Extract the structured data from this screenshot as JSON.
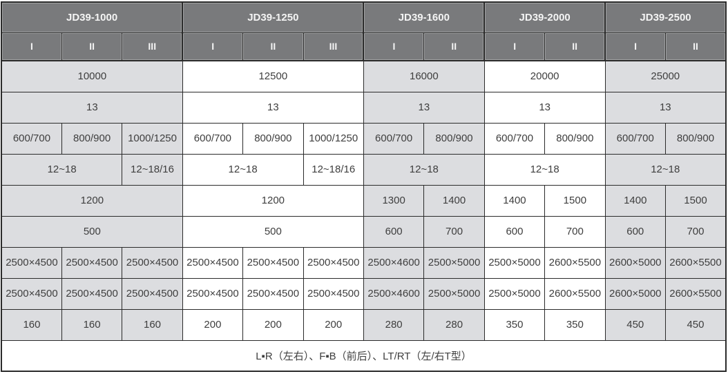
{
  "colors": {
    "header_bg": "#797a7c",
    "header_text": "#f4f4f4",
    "cell_shaded": "#dcdde0",
    "cell_white": "#ffffff",
    "grid_border": "#2a2a2a",
    "body_text": "#3e3e3e"
  },
  "chart_data": {
    "type": "table",
    "column_groups": [
      {
        "label": "JD39-1000",
        "subcolumns": [
          "I",
          "II",
          "III"
        ]
      },
      {
        "label": "JD39-1250",
        "subcolumns": [
          "I",
          "II",
          "III"
        ]
      },
      {
        "label": "JD39-1600",
        "subcolumns": [
          "I",
          "II"
        ]
      },
      {
        "label": "JD39-2000",
        "subcolumns": [
          "I",
          "II"
        ]
      },
      {
        "label": "JD39-2500",
        "subcolumns": [
          "I",
          "II"
        ]
      }
    ],
    "group_shading": [
      "gray",
      "white",
      "gray",
      "white",
      "gray"
    ],
    "body_rows": [
      [
        {
          "text": "10000",
          "span": 3
        },
        {
          "text": "12500",
          "span": 3
        },
        {
          "text": "16000",
          "span": 2
        },
        {
          "text": "20000",
          "span": 2
        },
        {
          "text": "25000",
          "span": 2
        }
      ],
      [
        {
          "text": "13",
          "span": 3
        },
        {
          "text": "13",
          "span": 3
        },
        {
          "text": "13",
          "span": 2
        },
        {
          "text": "13",
          "span": 2
        },
        {
          "text": "13",
          "span": 2
        }
      ],
      [
        {
          "text": "600/700",
          "span": 1
        },
        {
          "text": "800/900",
          "span": 1
        },
        {
          "text": "1000/1250",
          "span": 1
        },
        {
          "text": "600/700",
          "span": 1
        },
        {
          "text": "800/900",
          "span": 1
        },
        {
          "text": "1000/1250",
          "span": 1
        },
        {
          "text": "600/700",
          "span": 1
        },
        {
          "text": "800/900",
          "span": 1
        },
        {
          "text": "600/700",
          "span": 1
        },
        {
          "text": "800/900",
          "span": 1
        },
        {
          "text": "600/700",
          "span": 1
        },
        {
          "text": "800/900",
          "span": 1
        }
      ],
      [
        {
          "text": "12~18",
          "span": 2
        },
        {
          "text": "12~18/16",
          "span": 1
        },
        {
          "text": "12~18",
          "span": 2
        },
        {
          "text": "12~18/16",
          "span": 1
        },
        {
          "text": "12~18",
          "span": 2
        },
        {
          "text": "12~18",
          "span": 2
        },
        {
          "text": "12~18",
          "span": 2
        }
      ],
      [
        {
          "text": "1200",
          "span": 3
        },
        {
          "text": "1200",
          "span": 3
        },
        {
          "text": "1300",
          "span": 1
        },
        {
          "text": "1400",
          "span": 1
        },
        {
          "text": "1400",
          "span": 1
        },
        {
          "text": "1500",
          "span": 1
        },
        {
          "text": "1400",
          "span": 1
        },
        {
          "text": "1500",
          "span": 1
        }
      ],
      [
        {
          "text": "500",
          "span": 3
        },
        {
          "text": "500",
          "span": 3
        },
        {
          "text": "600",
          "span": 1
        },
        {
          "text": "700",
          "span": 1
        },
        {
          "text": "600",
          "span": 1
        },
        {
          "text": "700",
          "span": 1
        },
        {
          "text": "600",
          "span": 1
        },
        {
          "text": "700",
          "span": 1
        }
      ],
      [
        {
          "text": "2500×4500",
          "span": 1
        },
        {
          "text": "2500×4500",
          "span": 1
        },
        {
          "text": "2500×4500",
          "span": 1
        },
        {
          "text": "2500×4500",
          "span": 1
        },
        {
          "text": "2500×4500",
          "span": 1
        },
        {
          "text": "2500×4500",
          "span": 1
        },
        {
          "text": "2500×4600",
          "span": 1
        },
        {
          "text": "2500×5000",
          "span": 1
        },
        {
          "text": "2500×5000",
          "span": 1
        },
        {
          "text": "2600×5500",
          "span": 1
        },
        {
          "text": "2600×5000",
          "span": 1
        },
        {
          "text": "2600×5500",
          "span": 1
        }
      ],
      [
        {
          "text": "2500×4500",
          "span": 1
        },
        {
          "text": "2500×4500",
          "span": 1
        },
        {
          "text": "2500×4500",
          "span": 1
        },
        {
          "text": "2500×4500",
          "span": 1
        },
        {
          "text": "2500×4500",
          "span": 1
        },
        {
          "text": "2500×4500",
          "span": 1
        },
        {
          "text": "2500×4600",
          "span": 1
        },
        {
          "text": "2500×5000",
          "span": 1
        },
        {
          "text": "2500×5000",
          "span": 1
        },
        {
          "text": "2600×5500",
          "span": 1
        },
        {
          "text": "2600×5000",
          "span": 1
        },
        {
          "text": "2600×5500",
          "span": 1
        }
      ],
      [
        {
          "text": "160",
          "span": 1
        },
        {
          "text": "160",
          "span": 1
        },
        {
          "text": "160",
          "span": 1
        },
        {
          "text": "200",
          "span": 1
        },
        {
          "text": "200",
          "span": 1
        },
        {
          "text": "200",
          "span": 1
        },
        {
          "text": "280",
          "span": 1
        },
        {
          "text": "280",
          "span": 1
        },
        {
          "text": "350",
          "span": 1
        },
        {
          "text": "350",
          "span": 1
        },
        {
          "text": "450",
          "span": 1
        },
        {
          "text": "450",
          "span": 1
        }
      ],
      [
        {
          "text": "L▪R（左右）、F▪B（前后）、LT/RT（左/右T型）",
          "span": 12
        }
      ]
    ]
  }
}
